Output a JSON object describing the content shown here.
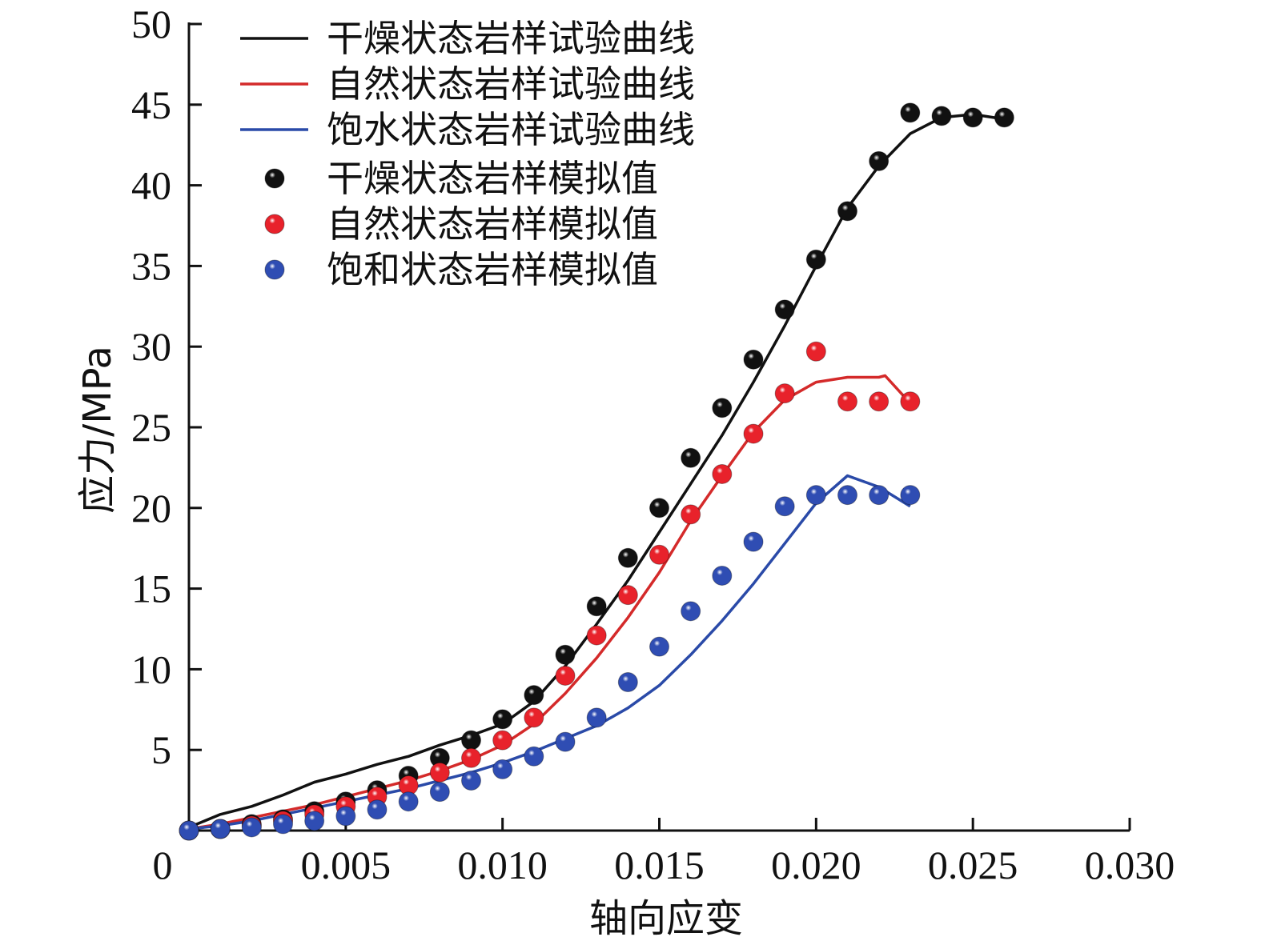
{
  "chart_data": {
    "type": "line",
    "title": "",
    "xlabel": "轴向应变",
    "ylabel": "应力/MPa",
    "xlim": [
      0,
      0.03
    ],
    "ylim": [
      0,
      50
    ],
    "grid": false,
    "legend_position": "top-left",
    "x_ticks": [
      "0",
      "0.005",
      "0.010",
      "0.015",
      "0.020",
      "0.025",
      "0.030"
    ],
    "x_tick_values": [
      0,
      0.005,
      0.01,
      0.015,
      0.02,
      0.025,
      0.03
    ],
    "y_ticks": [
      "5",
      "10",
      "15",
      "20",
      "25",
      "30",
      "35",
      "40",
      "45",
      "50"
    ],
    "y_tick_values": [
      5,
      10,
      15,
      20,
      25,
      30,
      35,
      40,
      45,
      50
    ],
    "lines": [
      {
        "name": "干燥状态岩样试验曲线",
        "color": "#111111",
        "x": [
          0,
          0.001,
          0.002,
          0.003,
          0.004,
          0.005,
          0.006,
          0.007,
          0.008,
          0.009,
          0.01,
          0.011,
          0.012,
          0.013,
          0.014,
          0.015,
          0.016,
          0.017,
          0.018,
          0.019,
          0.02,
          0.021,
          0.022,
          0.023,
          0.024,
          0.025,
          0.026
        ],
        "y": [
          0.2,
          1.0,
          1.5,
          2.2,
          3.0,
          3.5,
          4.1,
          4.6,
          5.3,
          5.9,
          6.6,
          8.0,
          10.2,
          12.8,
          15.5,
          18.5,
          21.5,
          24.5,
          27.8,
          31.3,
          35.0,
          38.6,
          41.2,
          43.2,
          44.2,
          44.4,
          44.1
        ]
      },
      {
        "name": "自然状态岩样试验曲线",
        "color": "#d42a2a",
        "x": [
          0,
          0.001,
          0.002,
          0.003,
          0.004,
          0.005,
          0.006,
          0.007,
          0.008,
          0.009,
          0.01,
          0.011,
          0.012,
          0.013,
          0.014,
          0.015,
          0.016,
          0.017,
          0.018,
          0.019,
          0.02,
          0.021,
          0.022,
          0.0222,
          0.023
        ],
        "y": [
          0.1,
          0.4,
          0.8,
          1.2,
          1.6,
          2.1,
          2.6,
          3.1,
          3.7,
          4.4,
          5.3,
          6.6,
          8.5,
          10.7,
          13.2,
          16.0,
          19.2,
          22.0,
          24.7,
          26.7,
          27.8,
          28.1,
          28.1,
          28.2,
          26.5
        ]
      },
      {
        "name": "饱水状态岩样试验曲线",
        "color": "#2a4aa8",
        "x": [
          0,
          0.001,
          0.002,
          0.003,
          0.004,
          0.005,
          0.006,
          0.007,
          0.008,
          0.009,
          0.01,
          0.011,
          0.012,
          0.013,
          0.014,
          0.015,
          0.016,
          0.017,
          0.018,
          0.019,
          0.02,
          0.021,
          0.022,
          0.023
        ],
        "y": [
          0.1,
          0.3,
          0.6,
          1.0,
          1.4,
          1.8,
          2.2,
          2.6,
          3.1,
          3.6,
          4.2,
          4.9,
          5.7,
          6.5,
          7.6,
          9.0,
          10.9,
          13.0,
          15.3,
          17.8,
          20.3,
          22.0,
          21.3,
          20.1
        ]
      }
    ],
    "scatter": [
      {
        "name": "干燥状态岩样模拟值",
        "color": "#111111",
        "x": [
          0,
          0.001,
          0.002,
          0.003,
          0.004,
          0.005,
          0.006,
          0.007,
          0.008,
          0.009,
          0.01,
          0.011,
          0.012,
          0.013,
          0.014,
          0.015,
          0.016,
          0.017,
          0.018,
          0.019,
          0.02,
          0.021,
          0.022,
          0.023,
          0.024,
          0.025,
          0.026
        ],
        "y": [
          0,
          0.1,
          0.4,
          0.7,
          1.2,
          1.8,
          2.5,
          3.4,
          4.5,
          5.6,
          6.9,
          8.4,
          10.9,
          13.9,
          16.9,
          20.0,
          23.1,
          26.2,
          29.2,
          32.3,
          35.4,
          38.4,
          41.5,
          44.5,
          44.3,
          44.2,
          44.2
        ]
      },
      {
        "name": "自然状态岩样模拟值",
        "color": "#e8222b",
        "x": [
          0,
          0.001,
          0.002,
          0.003,
          0.004,
          0.005,
          0.006,
          0.007,
          0.008,
          0.009,
          0.01,
          0.011,
          0.012,
          0.013,
          0.014,
          0.015,
          0.016,
          0.017,
          0.018,
          0.019,
          0.02,
          0.021,
          0.022,
          0.023
        ],
        "y": [
          0,
          0.1,
          0.3,
          0.6,
          1.0,
          1.5,
          2.1,
          2.8,
          3.6,
          4.5,
          5.6,
          7.0,
          9.6,
          12.1,
          14.6,
          17.1,
          19.6,
          22.1,
          24.6,
          27.1,
          29.7,
          26.6,
          26.6,
          26.6
        ]
      },
      {
        "name": "饱和状态岩样模拟值",
        "color": "#2f4db3",
        "x": [
          0,
          0.001,
          0.002,
          0.003,
          0.004,
          0.005,
          0.006,
          0.007,
          0.008,
          0.009,
          0.01,
          0.011,
          0.012,
          0.013,
          0.014,
          0.015,
          0.016,
          0.017,
          0.018,
          0.019,
          0.02,
          0.021,
          0.022,
          0.023
        ],
        "y": [
          0,
          0.1,
          0.2,
          0.4,
          0.6,
          0.9,
          1.3,
          1.8,
          2.4,
          3.1,
          3.8,
          4.6,
          5.5,
          7.0,
          9.2,
          11.4,
          13.6,
          15.8,
          17.9,
          20.1,
          20.8,
          20.8,
          20.8,
          20.8
        ]
      }
    ]
  }
}
